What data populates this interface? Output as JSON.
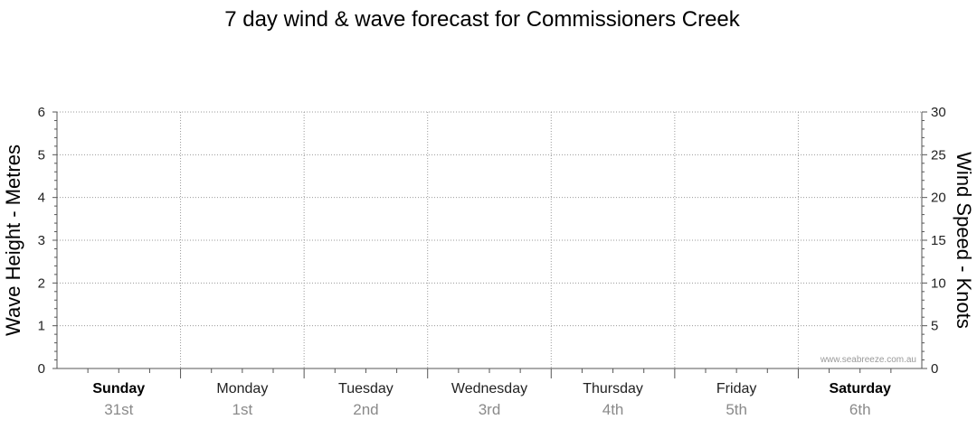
{
  "chart_data": {
    "type": "line",
    "title": "7 day wind & wave forecast for Commissioners Creek",
    "ylabel_left": "Wave Height - Metres",
    "ylabel_right": "Wind Speed - Knots",
    "ylim_left": [
      0,
      6
    ],
    "ylim_right": [
      0,
      30
    ],
    "yticks_left": [
      "0",
      "1",
      "2",
      "3",
      "4",
      "5",
      "6"
    ],
    "yticks_right": [
      "0",
      "5",
      "10",
      "15",
      "20",
      "25",
      "30"
    ],
    "grid": true,
    "days": [
      {
        "name": "Sunday",
        "date": "31st",
        "bold": true
      },
      {
        "name": "Monday",
        "date": "1st",
        "bold": false
      },
      {
        "name": "Tuesday",
        "date": "2nd",
        "bold": false
      },
      {
        "name": "Wednesday",
        "date": "3rd",
        "bold": false
      },
      {
        "name": "Thursday",
        "date": "4th",
        "bold": false
      },
      {
        "name": "Friday",
        "date": "5th",
        "bold": false
      },
      {
        "name": "Saturday",
        "date": "6th",
        "bold": true
      }
    ],
    "series": []
  },
  "watermark": "www.seabreeze.com.au"
}
